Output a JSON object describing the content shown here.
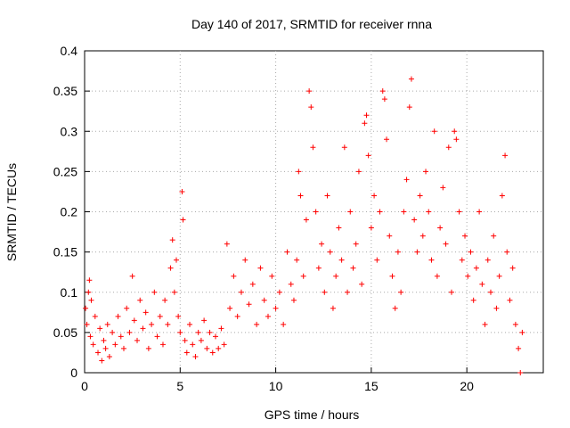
{
  "chart_data": {
    "type": "scatter",
    "title": "Day 140 of 2017, SRMTID for receiver rnna",
    "xlabel": "GPS time / hours",
    "ylabel": "SRMTID / TECUs",
    "xlim": [
      0,
      24
    ],
    "ylim": [
      0,
      0.4
    ],
    "x_ticks": [
      0,
      5,
      10,
      15,
      20
    ],
    "x_tick_labels": [
      "0",
      "5",
      "10",
      "15",
      "20"
    ],
    "y_ticks": [
      0,
      0.05,
      0.1,
      0.15,
      0.2,
      0.25,
      0.3,
      0.35,
      0.4
    ],
    "y_tick_labels": [
      "0",
      "0.05",
      "0.1",
      "0.15",
      "0.2",
      "0.25",
      "0.3",
      "0.35",
      "0.4"
    ],
    "grid": true,
    "marker": "+",
    "marker_color": "#ff0000",
    "series": [
      {
        "name": "SRMTID",
        "color": "#ff0000",
        "points": [
          [
            0.05,
            0.08
          ],
          [
            0.12,
            0.06
          ],
          [
            0.2,
            0.1
          ],
          [
            0.25,
            0.115
          ],
          [
            0.3,
            0.045
          ],
          [
            0.35,
            0.09
          ],
          [
            0.45,
            0.035
          ],
          [
            0.55,
            0.07
          ],
          [
            0.7,
            0.025
          ],
          [
            0.8,
            0.055
          ],
          [
            0.9,
            0.015
          ],
          [
            1.0,
            0.04
          ],
          [
            1.1,
            0.03
          ],
          [
            1.2,
            0.06
          ],
          [
            1.3,
            0.02
          ],
          [
            1.45,
            0.05
          ],
          [
            1.6,
            0.035
          ],
          [
            1.75,
            0.07
          ],
          [
            1.9,
            0.045
          ],
          [
            2.05,
            0.03
          ],
          [
            2.2,
            0.08
          ],
          [
            2.35,
            0.05
          ],
          [
            2.5,
            0.12
          ],
          [
            2.6,
            0.065
          ],
          [
            2.75,
            0.04
          ],
          [
            2.9,
            0.09
          ],
          [
            3.05,
            0.055
          ],
          [
            3.2,
            0.075
          ],
          [
            3.35,
            0.03
          ],
          [
            3.5,
            0.06
          ],
          [
            3.65,
            0.1
          ],
          [
            3.8,
            0.045
          ],
          [
            3.95,
            0.07
          ],
          [
            4.1,
            0.035
          ],
          [
            4.2,
            0.09
          ],
          [
            4.35,
            0.06
          ],
          [
            4.5,
            0.13
          ],
          [
            4.6,
            0.165
          ],
          [
            4.7,
            0.1
          ],
          [
            4.8,
            0.14
          ],
          [
            4.9,
            0.07
          ],
          [
            5.0,
            0.05
          ],
          [
            5.1,
            0.225
          ],
          [
            5.15,
            0.19
          ],
          [
            5.25,
            0.04
          ],
          [
            5.35,
            0.025
          ],
          [
            5.5,
            0.06
          ],
          [
            5.65,
            0.035
          ],
          [
            5.8,
            0.02
          ],
          [
            5.95,
            0.05
          ],
          [
            6.1,
            0.04
          ],
          [
            6.25,
            0.065
          ],
          [
            6.4,
            0.03
          ],
          [
            6.55,
            0.05
          ],
          [
            6.7,
            0.025
          ],
          [
            6.85,
            0.045
          ],
          [
            7.0,
            0.03
          ],
          [
            7.15,
            0.055
          ],
          [
            7.3,
            0.035
          ],
          [
            7.45,
            0.16
          ],
          [
            7.6,
            0.08
          ],
          [
            7.8,
            0.12
          ],
          [
            8.0,
            0.07
          ],
          [
            8.2,
            0.1
          ],
          [
            8.4,
            0.14
          ],
          [
            8.6,
            0.085
          ],
          [
            8.8,
            0.11
          ],
          [
            9.0,
            0.06
          ],
          [
            9.2,
            0.13
          ],
          [
            9.4,
            0.09
          ],
          [
            9.6,
            0.07
          ],
          [
            9.8,
            0.12
          ],
          [
            10.0,
            0.08
          ],
          [
            10.2,
            0.1
          ],
          [
            10.4,
            0.06
          ],
          [
            10.6,
            0.15
          ],
          [
            10.8,
            0.11
          ],
          [
            10.95,
            0.09
          ],
          [
            11.1,
            0.14
          ],
          [
            11.2,
            0.25
          ],
          [
            11.3,
            0.22
          ],
          [
            11.45,
            0.12
          ],
          [
            11.6,
            0.19
          ],
          [
            11.75,
            0.35
          ],
          [
            11.85,
            0.33
          ],
          [
            11.95,
            0.28
          ],
          [
            12.1,
            0.2
          ],
          [
            12.25,
            0.13
          ],
          [
            12.4,
            0.16
          ],
          [
            12.55,
            0.1
          ],
          [
            12.7,
            0.22
          ],
          [
            12.85,
            0.15
          ],
          [
            13.0,
            0.08
          ],
          [
            13.15,
            0.12
          ],
          [
            13.3,
            0.18
          ],
          [
            13.45,
            0.14
          ],
          [
            13.6,
            0.28
          ],
          [
            13.75,
            0.1
          ],
          [
            13.9,
            0.2
          ],
          [
            14.05,
            0.13
          ],
          [
            14.2,
            0.16
          ],
          [
            14.35,
            0.25
          ],
          [
            14.5,
            0.11
          ],
          [
            14.65,
            0.31
          ],
          [
            14.75,
            0.32
          ],
          [
            14.85,
            0.27
          ],
          [
            15.0,
            0.18
          ],
          [
            15.15,
            0.22
          ],
          [
            15.3,
            0.14
          ],
          [
            15.45,
            0.2
          ],
          [
            15.6,
            0.35
          ],
          [
            15.7,
            0.34
          ],
          [
            15.8,
            0.29
          ],
          [
            15.95,
            0.17
          ],
          [
            16.1,
            0.12
          ],
          [
            16.25,
            0.08
          ],
          [
            16.4,
            0.15
          ],
          [
            16.55,
            0.1
          ],
          [
            16.7,
            0.2
          ],
          [
            16.85,
            0.24
          ],
          [
            17.0,
            0.33
          ],
          [
            17.1,
            0.365
          ],
          [
            17.25,
            0.19
          ],
          [
            17.4,
            0.15
          ],
          [
            17.55,
            0.22
          ],
          [
            17.7,
            0.17
          ],
          [
            17.85,
            0.25
          ],
          [
            18.0,
            0.2
          ],
          [
            18.15,
            0.14
          ],
          [
            18.3,
            0.3
          ],
          [
            18.45,
            0.12
          ],
          [
            18.6,
            0.18
          ],
          [
            18.75,
            0.23
          ],
          [
            18.9,
            0.16
          ],
          [
            19.05,
            0.28
          ],
          [
            19.2,
            0.1
          ],
          [
            19.35,
            0.3
          ],
          [
            19.45,
            0.29
          ],
          [
            19.6,
            0.2
          ],
          [
            19.75,
            0.14
          ],
          [
            19.9,
            0.17
          ],
          [
            20.05,
            0.12
          ],
          [
            20.2,
            0.15
          ],
          [
            20.35,
            0.09
          ],
          [
            20.5,
            0.13
          ],
          [
            20.65,
            0.2
          ],
          [
            20.8,
            0.11
          ],
          [
            20.95,
            0.06
          ],
          [
            21.1,
            0.14
          ],
          [
            21.25,
            0.1
          ],
          [
            21.4,
            0.17
          ],
          [
            21.55,
            0.08
          ],
          [
            21.7,
            0.12
          ],
          [
            21.85,
            0.22
          ],
          [
            22.0,
            0.27
          ],
          [
            22.1,
            0.15
          ],
          [
            22.25,
            0.09
          ],
          [
            22.4,
            0.13
          ],
          [
            22.55,
            0.06
          ],
          [
            22.7,
            0.03
          ],
          [
            22.8,
            0.0
          ],
          [
            22.9,
            0.05
          ]
        ]
      }
    ]
  }
}
